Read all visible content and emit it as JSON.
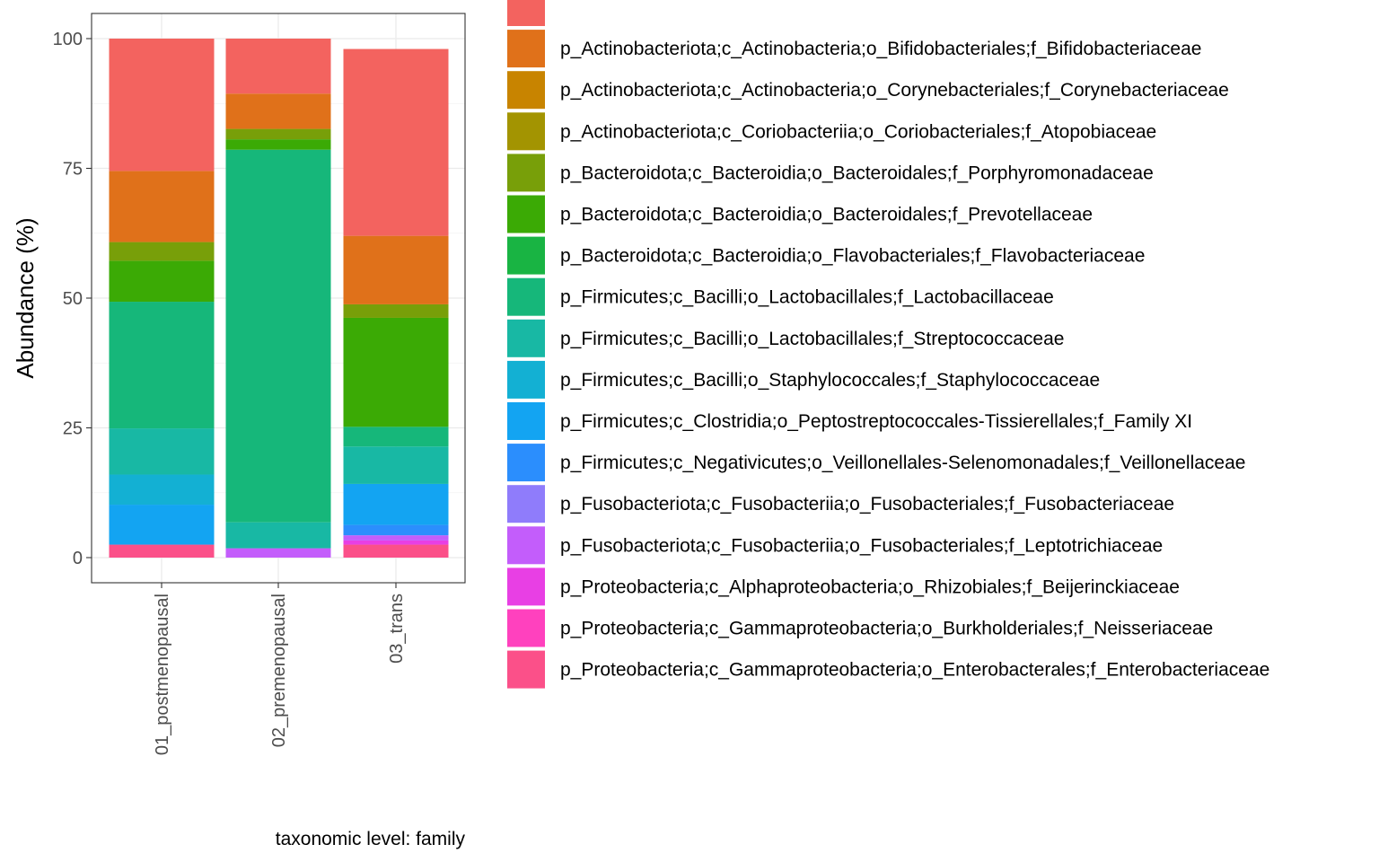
{
  "chart_data": {
    "type": "bar",
    "stacked": true,
    "ylabel": "Abundance (%)",
    "xlabel": "",
    "caption": "taxonomic level: family",
    "ylim": [
      0,
      100
    ],
    "yticks": [
      0,
      25,
      50,
      75,
      100
    ],
    "grid": true,
    "legend_position": "right",
    "categories": [
      "01_postmenopausal",
      "02_premenopausal",
      "03_trans"
    ],
    "series": [
      {
        "name": "p_Proteobacteria;c_Gammaproteobacteria;o_Enterobacterales;f_Enterobacteriaceae",
        "color": "#FB5089",
        "values": [
          2.5,
          0,
          2.5
        ]
      },
      {
        "name": "p_Proteobacteria;c_Gammaproteobacteria;o_Burkholderiales;f_Neisseriaceae",
        "color": "#FF41BE",
        "values": [
          0,
          0,
          0
        ]
      },
      {
        "name": "p_Proteobacteria;c_Alphaproteobacteria;o_Rhizobiales;f_Beijerinckiaceae",
        "color": "#E83FE4",
        "values": [
          0,
          0,
          0.8
        ]
      },
      {
        "name": "p_Fusobacteriota;c_Fusobacteriia;o_Fusobacteriales;f_Leptotrichiaceae",
        "color": "#C35DFB",
        "values": [
          0,
          1.8,
          1.0
        ]
      },
      {
        "name": "p_Fusobacteriota;c_Fusobacteriia;o_Fusobacteriales;f_Fusobacteriaceae",
        "color": "#8F7CFB",
        "values": [
          0,
          0,
          0
        ]
      },
      {
        "name": "p_Firmicutes;c_Negativicutes;o_Veillonellales-Selenomonadales;f_Veillonellaceae",
        "color": "#2B8EFD",
        "values": [
          0,
          0,
          2.0
        ]
      },
      {
        "name": "p_Firmicutes;c_Clostridia;o_Peptostreptococcales-Tissierellales;f_Family XI",
        "color": "#13A4F2",
        "values": [
          7.7,
          0,
          7.9
        ]
      },
      {
        "name": "p_Firmicutes;c_Bacilli;o_Staphylococcales;f_Staphylococcaceae",
        "color": "#13B0D3",
        "values": [
          5.8,
          0,
          0
        ]
      },
      {
        "name": "p_Firmicutes;c_Bacilli;o_Lactobacillales;f_Streptococcaceae",
        "color": "#18B8A4",
        "values": [
          8.9,
          5.0,
          7.2
        ]
      },
      {
        "name": "p_Firmicutes;c_Bacilli;o_Lactobacillales;f_Lactobacillaceae",
        "color": "#16B77A",
        "values": [
          24.4,
          71.8,
          3.8
        ]
      },
      {
        "name": "p_Bacteroidota;c_Bacteroidia;o_Flavobacteriales;f_Flavobacteriaceae",
        "color": "#19B443",
        "values": [
          0,
          0,
          0
        ]
      },
      {
        "name": "p_Bacteroidota;c_Bacteroidia;o_Bacteroidales;f_Prevotellaceae",
        "color": "#3BAA05",
        "values": [
          7.9,
          2.0,
          21.0
        ]
      },
      {
        "name": "p_Bacteroidota;c_Bacteroidia;o_Bacteroidales;f_Porphyromonadaceae",
        "color": "#789F09",
        "values": [
          3.6,
          2.0,
          2.6
        ]
      },
      {
        "name": "p_Actinobacteriota;c_Coriobacteriia;o_Coriobacteriales;f_Atopobiaceae",
        "color": "#A39401",
        "values": [
          0,
          0,
          0
        ]
      },
      {
        "name": "p_Actinobacteriota;c_Actinobacteria;o_Corynebacteriales;f_Corynebacteriaceae",
        "color": "#C88400",
        "values": [
          0,
          0,
          0
        ]
      },
      {
        "name": "p_Actinobacteriota;c_Actinobacteria;o_Bifidobacteriales;f_Bifidobacteriaceae",
        "color": "#E0711A",
        "values": [
          13.7,
          6.8,
          13.2
        ]
      },
      {
        "name": "",
        "color": "#F3635F",
        "values": [
          25.5,
          10.6,
          36.0
        ]
      }
    ]
  }
}
